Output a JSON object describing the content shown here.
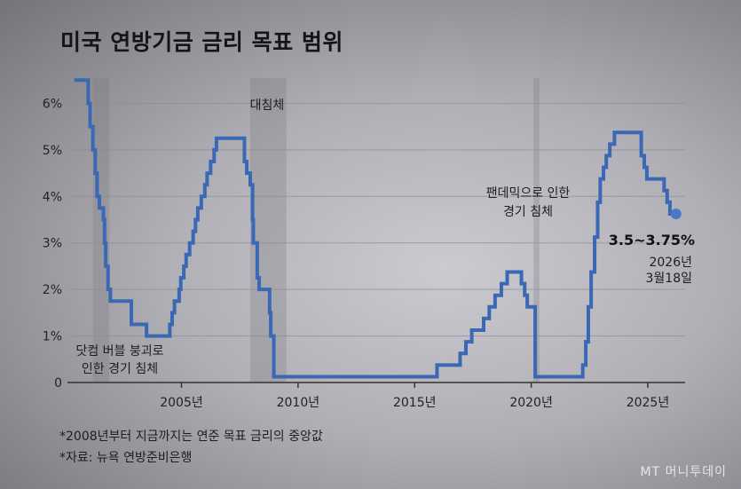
{
  "chart_data": {
    "type": "line",
    "title": "미국 연방기금 금리 목표 범위",
    "xlabel": "",
    "ylabel": "",
    "xlim": [
      1999.5,
      2026.6
    ],
    "ylim": [
      0,
      6.6
    ],
    "grid": true,
    "y_ticks": [
      {
        "v": 0,
        "label": "0"
      },
      {
        "v": 1,
        "label": "1%"
      },
      {
        "v": 2,
        "label": "2%"
      },
      {
        "v": 3,
        "label": "3%"
      },
      {
        "v": 4,
        "label": "4%"
      },
      {
        "v": 5,
        "label": "5%"
      },
      {
        "v": 6,
        "label": "6%"
      }
    ],
    "x_ticks": [
      {
        "v": 2005,
        "label": "2005년"
      },
      {
        "v": 2010,
        "label": "2010년"
      },
      {
        "v": 2015,
        "label": "2015년"
      },
      {
        "v": 2020,
        "label": "2020년"
      },
      {
        "v": 2025,
        "label": "2025년"
      }
    ],
    "series": [
      {
        "name": "연방기금 금리",
        "color": "#3a68b4",
        "step": true,
        "points": [
          [
            2000.4,
            6.5
          ],
          [
            2001.0,
            6.0
          ],
          [
            2001.08,
            5.5
          ],
          [
            2001.2,
            5.0
          ],
          [
            2001.3,
            4.5
          ],
          [
            2001.38,
            4.0
          ],
          [
            2001.48,
            3.75
          ],
          [
            2001.65,
            3.5
          ],
          [
            2001.7,
            3.0
          ],
          [
            2001.75,
            2.5
          ],
          [
            2001.85,
            2.0
          ],
          [
            2001.95,
            1.75
          ],
          [
            2002.85,
            1.25
          ],
          [
            2003.5,
            1.0
          ],
          [
            2004.5,
            1.25
          ],
          [
            2004.6,
            1.5
          ],
          [
            2004.7,
            1.75
          ],
          [
            2004.9,
            2.0
          ],
          [
            2004.97,
            2.25
          ],
          [
            2005.1,
            2.5
          ],
          [
            2005.2,
            2.75
          ],
          [
            2005.35,
            3.0
          ],
          [
            2005.5,
            3.25
          ],
          [
            2005.6,
            3.5
          ],
          [
            2005.7,
            3.75
          ],
          [
            2005.85,
            4.0
          ],
          [
            2006.0,
            4.25
          ],
          [
            2006.1,
            4.5
          ],
          [
            2006.25,
            4.75
          ],
          [
            2006.4,
            5.0
          ],
          [
            2006.5,
            5.25
          ],
          [
            2007.7,
            4.75
          ],
          [
            2007.8,
            4.5
          ],
          [
            2007.95,
            4.25
          ],
          [
            2008.05,
            3.5
          ],
          [
            2008.08,
            3.0
          ],
          [
            2008.25,
            2.25
          ],
          [
            2008.33,
            2.0
          ],
          [
            2008.78,
            1.5
          ],
          [
            2008.83,
            1.0
          ],
          [
            2008.96,
            0.125
          ],
          [
            2015.96,
            0.375
          ],
          [
            2016.95,
            0.625
          ],
          [
            2017.2,
            0.875
          ],
          [
            2017.45,
            1.125
          ],
          [
            2017.96,
            1.375
          ],
          [
            2018.2,
            1.625
          ],
          [
            2018.45,
            1.875
          ],
          [
            2018.72,
            2.125
          ],
          [
            2018.97,
            2.375
          ],
          [
            2019.58,
            2.125
          ],
          [
            2019.72,
            1.875
          ],
          [
            2019.83,
            1.625
          ],
          [
            2020.17,
            0.125
          ],
          [
            2022.21,
            0.375
          ],
          [
            2022.34,
            0.875
          ],
          [
            2022.45,
            1.625
          ],
          [
            2022.57,
            2.375
          ],
          [
            2022.72,
            3.125
          ],
          [
            2022.85,
            3.875
          ],
          [
            2022.96,
            4.375
          ],
          [
            2023.1,
            4.625
          ],
          [
            2023.22,
            4.875
          ],
          [
            2023.37,
            5.125
          ],
          [
            2023.57,
            5.375
          ],
          [
            2024.72,
            4.875
          ],
          [
            2024.85,
            4.625
          ],
          [
            2024.96,
            4.375
          ],
          [
            2025.7,
            4.125
          ],
          [
            2025.83,
            3.875
          ],
          [
            2025.95,
            3.625
          ],
          [
            2026.21,
            3.625
          ]
        ]
      }
    ],
    "recessions": [
      {
        "start": 2001.2,
        "end": 2001.9,
        "label": "닷컴 버블 붕괴로 인한 경기 침체"
      },
      {
        "start": 2007.95,
        "end": 2009.5,
        "label": "대침체"
      },
      {
        "start": 2020.1,
        "end": 2020.35,
        "label": "팬데믹으로 인한 경기 침체"
      }
    ],
    "annotations": {
      "dotcom": [
        "닷컴 버블 붕괴로",
        "인한 경기 침체"
      ],
      "great_recession": [
        "대침체"
      ],
      "pandemic": [
        "팬데믹으로 인한",
        "경기 침체"
      ],
      "latest_value": "3.5~3.75%",
      "latest_date": [
        "2026년",
        "3월18일"
      ]
    },
    "notes": [
      "*2008년부터 지금까지는 연준 목표 금리의 중앙값",
      "*자료: 뉴욕 연방준비은행"
    ]
  },
  "watermark": "MT 머니투데이"
}
